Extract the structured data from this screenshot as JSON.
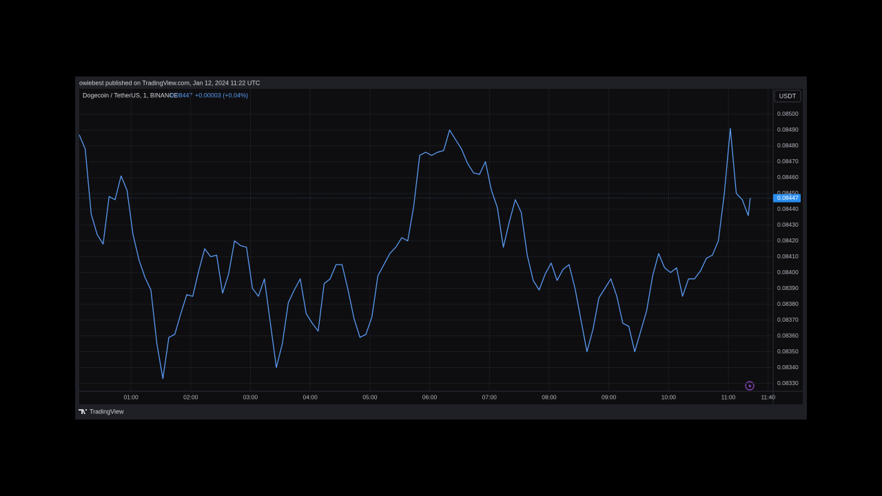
{
  "chart_data": {
    "type": "line",
    "header": "owiebest published on TradingView.com, Jan 12, 2024 11:22 UTC",
    "symbol": "Dogecoin / TetherUS, 1, BINANCE",
    "change": "+0.00003 (+0.04%)",
    "currency": "USDT",
    "brand": "TradingView",
    "x": [
      "00:08",
      "00:14",
      "00:20",
      "00:26",
      "00:32",
      "00:38",
      "00:44",
      "00:50",
      "00:56",
      "01:02",
      "01:08",
      "01:14",
      "01:20",
      "01:26",
      "01:32",
      "01:38",
      "01:44",
      "01:50",
      "01:56",
      "02:02",
      "02:08",
      "02:14",
      "02:20",
      "02:26",
      "02:32",
      "02:38",
      "02:44",
      "02:50",
      "02:56",
      "03:02",
      "03:08",
      "03:14",
      "03:20",
      "03:26",
      "03:32",
      "03:38",
      "03:44",
      "03:50",
      "03:56",
      "04:02",
      "04:08",
      "04:14",
      "04:20",
      "04:26",
      "04:32",
      "04:38",
      "04:44",
      "04:50",
      "04:56",
      "05:02",
      "05:08",
      "05:14",
      "05:20",
      "05:26",
      "05:32",
      "05:38",
      "05:44",
      "05:50",
      "05:56",
      "06:02",
      "06:08",
      "06:14",
      "06:20",
      "06:26",
      "06:32",
      "06:38",
      "06:44",
      "06:50",
      "06:56",
      "07:02",
      "07:08",
      "07:14",
      "07:20",
      "07:26",
      "07:32",
      "07:38",
      "07:44",
      "07:50",
      "07:56",
      "08:02",
      "08:08",
      "08:14",
      "08:20",
      "08:26",
      "08:32",
      "08:38",
      "08:44",
      "08:50",
      "08:56",
      "09:02",
      "09:08",
      "09:14",
      "09:20",
      "09:26",
      "09:32",
      "09:38",
      "09:44",
      "09:50",
      "09:56",
      "10:02",
      "10:08",
      "10:14",
      "10:20",
      "10:26",
      "10:32",
      "10:38",
      "10:44",
      "10:50",
      "10:56",
      "11:02",
      "11:08",
      "11:14",
      "11:20",
      "11:22"
    ],
    "series": [
      {
        "name": "Dogecoin / TetherUS",
        "color": "#5b9cf6",
        "values": [
          0.08487,
          0.08478,
          0.08437,
          0.08424,
          0.08418,
          0.08448,
          0.08446,
          0.08461,
          0.08452,
          0.08424,
          0.08408,
          0.08397,
          0.08389,
          0.08355,
          0.08333,
          0.08359,
          0.08361,
          0.08374,
          0.08386,
          0.08385,
          0.08401,
          0.08415,
          0.0841,
          0.08411,
          0.08387,
          0.08399,
          0.0842,
          0.08417,
          0.08416,
          0.0839,
          0.08385,
          0.08396,
          0.08368,
          0.0834,
          0.08355,
          0.08381,
          0.08389,
          0.08396,
          0.08374,
          0.08368,
          0.08363,
          0.08393,
          0.08396,
          0.08405,
          0.08405,
          0.08389,
          0.08371,
          0.08359,
          0.08361,
          0.08372,
          0.08398,
          0.08405,
          0.08412,
          0.08416,
          0.08422,
          0.0842,
          0.08442,
          0.08474,
          0.08476,
          0.08474,
          0.08476,
          0.08477,
          0.0849,
          0.08484,
          0.08478,
          0.08469,
          0.08463,
          0.08462,
          0.0847,
          0.08452,
          0.08441,
          0.08416,
          0.08432,
          0.08446,
          0.08438,
          0.08411,
          0.08395,
          0.08389,
          0.08399,
          0.08406,
          0.08395,
          0.08402,
          0.08405,
          0.0839,
          0.0837,
          0.0835,
          0.08364,
          0.08384,
          0.0839,
          0.08396,
          0.08385,
          0.08368,
          0.08366,
          0.0835,
          0.08363,
          0.08376,
          0.08398,
          0.08412,
          0.08403,
          0.084,
          0.08403,
          0.08385,
          0.08396,
          0.08396,
          0.08401,
          0.08409,
          0.08411,
          0.0842,
          0.0845,
          0.08491,
          0.0845,
          0.08446,
          0.08436,
          0.08447
        ]
      }
    ],
    "xlim": [
      "00:08",
      "11:45"
    ],
    "xticks": [
      "01:00",
      "02:00",
      "03:00",
      "04:00",
      "05:00",
      "06:00",
      "07:00",
      "08:00",
      "09:00",
      "10:00",
      "11:00",
      "11:40"
    ],
    "ylim": [
      0.08325,
      0.08516
    ],
    "yticks": [
      {
        "value": 0.0833,
        "label": "0.08330"
      },
      {
        "value": 0.0834,
        "label": "0.08340"
      },
      {
        "value": 0.0835,
        "label": "0.08350"
      },
      {
        "value": 0.0836,
        "label": "0.08360"
      },
      {
        "value": 0.0837,
        "label": "0.08370"
      },
      {
        "value": 0.0838,
        "label": "0.08380"
      },
      {
        "value": 0.0839,
        "label": "0.08390"
      },
      {
        "value": 0.084,
        "label": "0.08400"
      },
      {
        "value": 0.0841,
        "label": "0.08410"
      },
      {
        "value": 0.0842,
        "label": "0.08420"
      },
      {
        "value": 0.0843,
        "label": "0.08430"
      },
      {
        "value": 0.0844,
        "label": "0.08440"
      },
      {
        "value": 0.0845,
        "label": "0.08450"
      },
      {
        "value": 0.0846,
        "label": "0.08460"
      },
      {
        "value": 0.0847,
        "label": "0.08470"
      },
      {
        "value": 0.0848,
        "label": "0.08480"
      },
      {
        "value": 0.0849,
        "label": "0.08490"
      },
      {
        "value": 0.085,
        "label": "0.08500"
      }
    ],
    "grid": true,
    "price_tag_color": "#2a8ded"
  }
}
